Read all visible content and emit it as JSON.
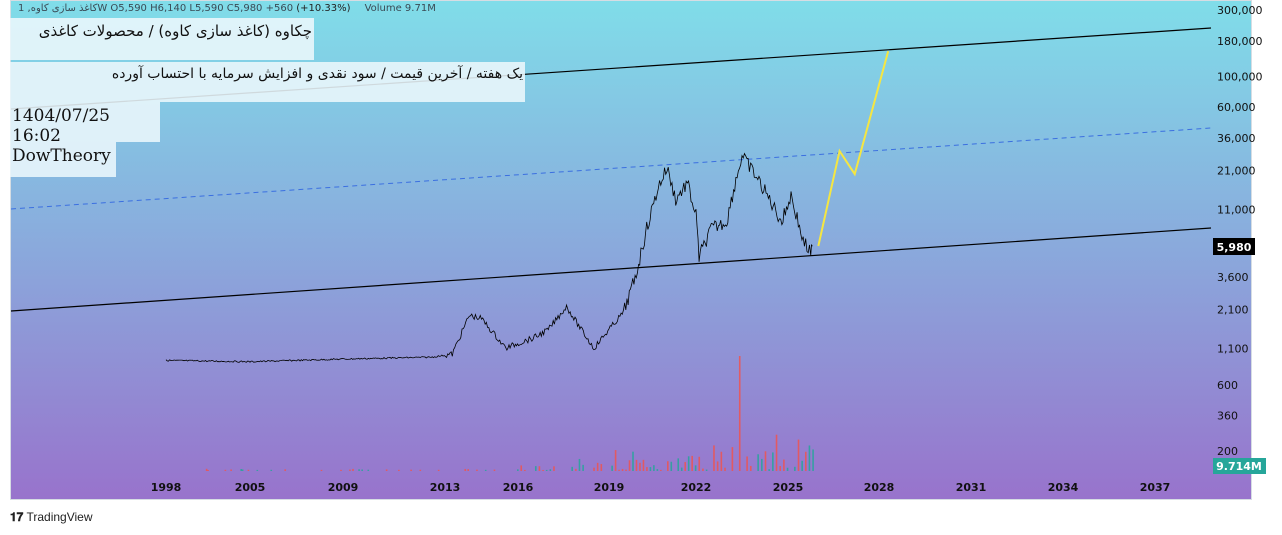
{
  "legend": {
    "symbol": "کاغذ سازی کاوه, 1W",
    "ohlc": "O5,590 H6,140 L5,590 C5,980 +560",
    "change": "(+10.33%)",
    "volume": "Volume 9.71M"
  },
  "labels": [
    "چکاوه (کاغذ سازی کاوه) / محصولات کاغذی",
    "یک هفته / آخرین قیمت / سود نقدی و افزایش سرمایه با احتساب آورده",
    "1404/07/25 16:02",
    "DowTheory"
  ],
  "branding": "TradingView",
  "chart_data": {
    "type": "line",
    "scale": "log",
    "yticks": [
      "300,000",
      "180,000",
      "100,000",
      "60,000",
      "36,000",
      "21,000",
      "11,000",
      "3,600",
      "2,100",
      "1,100",
      "600",
      "360",
      "200"
    ],
    "ytick_values": [
      300000,
      180000,
      100000,
      60000,
      36000,
      21000,
      11000,
      3600,
      2100,
      1100,
      600,
      360,
      200
    ],
    "xticks": [
      "1998",
      "2005",
      "2009",
      "2013",
      "2016",
      "2019",
      "2022",
      "2025",
      "2028",
      "2031",
      "2034",
      "2037"
    ],
    "last_price_label": "5,980",
    "last_volume_label": "9.714M",
    "price": [
      [
        1998,
        900
      ],
      [
        2005,
        880
      ],
      [
        2009,
        920
      ],
      [
        2012.5,
        950
      ],
      [
        2013.3,
        1000
      ],
      [
        2014,
        1900
      ],
      [
        2014.5,
        1800
      ],
      [
        2015.5,
        1100
      ],
      [
        2016.5,
        1300
      ],
      [
        2017,
        1500
      ],
      [
        2017.6,
        2200
      ],
      [
        2018,
        1600
      ],
      [
        2018.5,
        1100
      ],
      [
        2019,
        1500
      ],
      [
        2019.5,
        2000
      ],
      [
        2019.9,
        3500
      ],
      [
        2020.3,
        8000
      ],
      [
        2020.7,
        16000
      ],
      [
        2021,
        22000
      ],
      [
        2021.3,
        13000
      ],
      [
        2021.7,
        17000
      ],
      [
        2022,
        10000
      ],
      [
        2022.1,
        5000
      ],
      [
        2022.5,
        8000
      ],
      [
        2023,
        9000
      ],
      [
        2023.3,
        18000
      ],
      [
        2023.5,
        26700
      ],
      [
        2023.9,
        20000
      ],
      [
        2024.4,
        13000
      ],
      [
        2024.8,
        9000
      ],
      [
        2025.1,
        14000
      ],
      [
        2025.5,
        6500
      ],
      [
        2025.75,
        5300
      ],
      [
        2025.8,
        5980
      ]
    ],
    "projection": [
      [
        2026.0,
        6000
      ],
      [
        2026.7,
        29000
      ],
      [
        2027.2,
        19800
      ],
      [
        2028.3,
        152000
      ]
    ],
    "colors": {
      "price": "#000000",
      "projection": "#f5e642",
      "channel": "#000000",
      "mid_channel": "#3b6fe0",
      "vol_up": "#26a69a",
      "vol_down": "#ef5350"
    }
  }
}
